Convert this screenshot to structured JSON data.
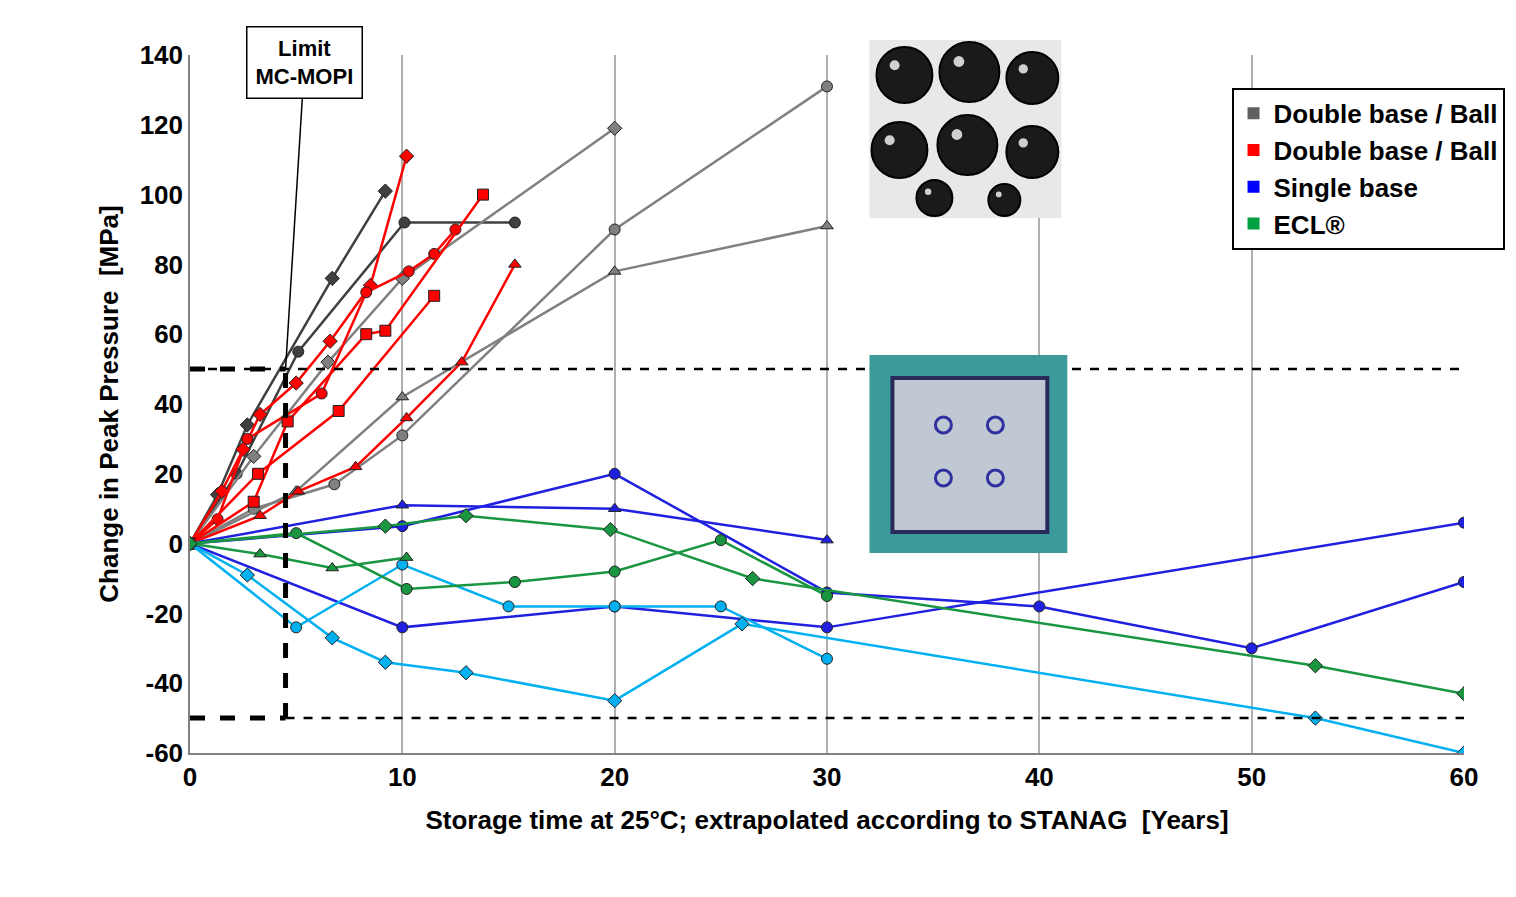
{
  "chart_data": {
    "type": "line",
    "x_label": "Storage time at 25°C; extrapolated according to STANAG  [Years]",
    "y_label": "Change in Peak Pressure  [MPa]",
    "xlim": [
      0,
      60
    ],
    "xticks": [
      0,
      10,
      20,
      30,
      40,
      50,
      60
    ],
    "ylim": [
      -60,
      140
    ],
    "yticks": [
      -60,
      -40,
      -20,
      0,
      20,
      40,
      60,
      80,
      100,
      120,
      140
    ],
    "grid": "x",
    "legend": "top right",
    "annotation": {
      "text": [
        "Limit",
        "MC-MOPI"
      ]
    },
    "limits": {
      "x": 4.5,
      "y": [
        -50,
        50
      ]
    },
    "groups": [
      {
        "name": "Double base / Ball",
        "color": "#606060",
        "series": [
          {
            "color": "#404040",
            "marker": "diamond",
            "x": [
              0,
              1.3,
              2.7,
              6.7,
              9.2
            ],
            "values": [
              0,
              14,
              34,
              76,
              101
            ]
          },
          {
            "color": "#404040",
            "marker": "circle",
            "x": [
              0,
              2.2,
              5.1,
              10.1,
              15.3
            ],
            "values": [
              0,
              20,
              55,
              92,
              92
            ]
          },
          {
            "color": "#808080",
            "marker": "diamond",
            "x": [
              0,
              3,
              6.5,
              10,
              20
            ],
            "values": [
              0,
              25,
              52,
              76,
              119
            ]
          },
          {
            "color": "#808080",
            "marker": "circle",
            "x": [
              0,
              3,
              6.8,
              10,
              20,
              30
            ],
            "values": [
              0,
              10,
              17,
              31,
              90,
              131
            ]
          },
          {
            "color": "#808080",
            "marker": "triangle",
            "x": [
              0,
              5,
              10,
              20,
              30
            ],
            "values": [
              0,
              15,
              42,
              78,
              91
            ]
          }
        ]
      },
      {
        "name": "Double base / Ball",
        "color": "#ff0000",
        "series": [
          {
            "color": "#ff0000",
            "marker": "diamond",
            "x": [
              0,
              1.5,
              2.5,
              3.3,
              5,
              6.6,
              8.5,
              10.2
            ],
            "values": [
              0,
              15,
              27,
              37,
              46,
              58,
              74,
              111
            ]
          },
          {
            "color": "#ff0000",
            "marker": "circle",
            "x": [
              0,
              1.3,
              2.7,
              6.2,
              8.3,
              10.3,
              11.5,
              12.5
            ],
            "values": [
              0,
              7,
              30,
              43,
              72,
              78,
              83,
              90
            ]
          },
          {
            "color": "#ff0000",
            "marker": "square",
            "x": [
              0,
              3,
              4.6,
              8.3,
              9.2,
              13.8
            ],
            "values": [
              0,
              12,
              35,
              60,
              61,
              100
            ]
          },
          {
            "color": "#ff0000",
            "marker": "square",
            "x": [
              0,
              3.2,
              7,
              11.5
            ],
            "values": [
              0,
              20,
              38,
              71
            ]
          },
          {
            "color": "#ff0000",
            "marker": "triangle",
            "x": [
              0,
              3.3,
              5.1,
              7.8,
              10.2,
              12.8,
              15.3
            ],
            "values": [
              0,
              8,
              15,
              22,
              36,
              52,
              80
            ]
          }
        ]
      },
      {
        "name": "Single base",
        "color": "#0000ff",
        "series": [
          {
            "color": "#2020e0",
            "marker": "circle",
            "x": [
              0,
              10,
              20,
              30,
              40,
              50,
              60
            ],
            "values": [
              0,
              5,
              20,
              -14,
              -18,
              -30,
              -11
            ]
          },
          {
            "color": "#2020e0",
            "marker": "circle",
            "x": [
              0,
              10,
              20,
              30,
              60
            ],
            "values": [
              0,
              -24,
              -18,
              -24,
              6
            ]
          },
          {
            "color": "#2020e0",
            "marker": "triangle",
            "x": [
              0,
              10,
              20,
              30
            ],
            "values": [
              0,
              11,
              10,
              1
            ]
          },
          {
            "color": "#00b0f0",
            "marker": "circle",
            "x": [
              0,
              5,
              10,
              15,
              20,
              25,
              30
            ],
            "values": [
              0,
              -24,
              -6,
              -18,
              -18,
              -18,
              -33
            ]
          },
          {
            "color": "#00b0f0",
            "marker": "diamond",
            "x": [
              0,
              2.7,
              6.7,
              9.2,
              13,
              20,
              26,
              53,
              60
            ],
            "values": [
              0,
              -9,
              -27,
              -34,
              -37,
              -45,
              -23,
              -50,
              -60
            ]
          }
        ]
      },
      {
        "name": "ECL®",
        "color": "#00a040",
        "series": [
          {
            "color": "#1a9641",
            "marker": "triangle",
            "x": [
              0,
              3.3,
              6.7,
              10.2
            ],
            "values": [
              0,
              -3,
              -7,
              -4
            ]
          },
          {
            "color": "#1a9641",
            "marker": "circle",
            "x": [
              0,
              5,
              10.2,
              15.3,
              20,
              25,
              30
            ],
            "values": [
              0,
              3,
              -13,
              -11,
              -8,
              1,
              -15
            ]
          },
          {
            "color": "#1a9641",
            "marker": "diamond",
            "x": [
              0,
              9.2,
              13,
              19.8,
              26.5,
              53,
              60
            ],
            "values": [
              0,
              5,
              8,
              4,
              -10,
              -35,
              -43
            ]
          }
        ]
      }
    ]
  }
}
